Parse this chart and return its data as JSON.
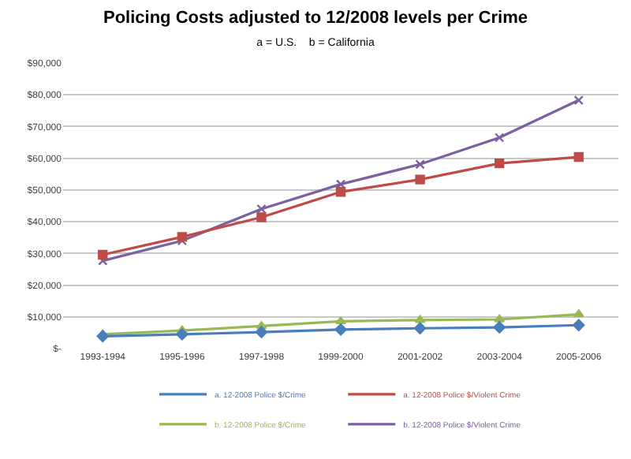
{
  "chart_data": {
    "type": "line",
    "title": "Policing Costs adjusted to 12/2008 levels per Crime",
    "subtitle": "a = U.S.    b = California",
    "categories": [
      "1993-1994",
      "1995-1996",
      "1997-1998",
      "1999-2000",
      "2001-2002",
      "2003-2004",
      "2005-2006"
    ],
    "series": [
      {
        "name": "a. 12-2008 Police $/Crime",
        "color": "#4a7ebb",
        "marker": "diamond",
        "values": [
          3900,
          4500,
          5200,
          6000,
          6400,
          6700,
          7400
        ]
      },
      {
        "name": "a. 12-2008 Police $/Violent Crime",
        "color": "#be4b48",
        "marker": "square",
        "values": [
          29600,
          35200,
          41400,
          49400,
          53300,
          58400,
          60400
        ]
      },
      {
        "name": "b. 12-2008 Police $/Crime",
        "color": "#98b954",
        "marker": "triangle",
        "values": [
          4500,
          5700,
          7100,
          8600,
          9000,
          9200,
          10800
        ]
      },
      {
        "name": "b. 12-2008 Police $/Violent Crime",
        "color": "#7d60a0",
        "marker": "cross",
        "values": [
          27700,
          34000,
          44000,
          51800,
          58100,
          66500,
          78300
        ]
      }
    ],
    "ylim": [
      0,
      90000
    ],
    "yticks": [
      {
        "value": 0,
        "label": "$-"
      },
      {
        "value": 10000,
        "label": "$10,000"
      },
      {
        "value": 20000,
        "label": "$20,000"
      },
      {
        "value": 30000,
        "label": "$30,000"
      },
      {
        "value": 40000,
        "label": "$40,000"
      },
      {
        "value": 50000,
        "label": "$50,000"
      },
      {
        "value": 60000,
        "label": "$60,000"
      },
      {
        "value": 70000,
        "label": "$70,000"
      },
      {
        "value": 80000,
        "label": "$80,000"
      },
      {
        "value": 90000,
        "label": "$90,000"
      }
    ],
    "grid": "y",
    "legend": "bottom",
    "line_style": "solid"
  }
}
